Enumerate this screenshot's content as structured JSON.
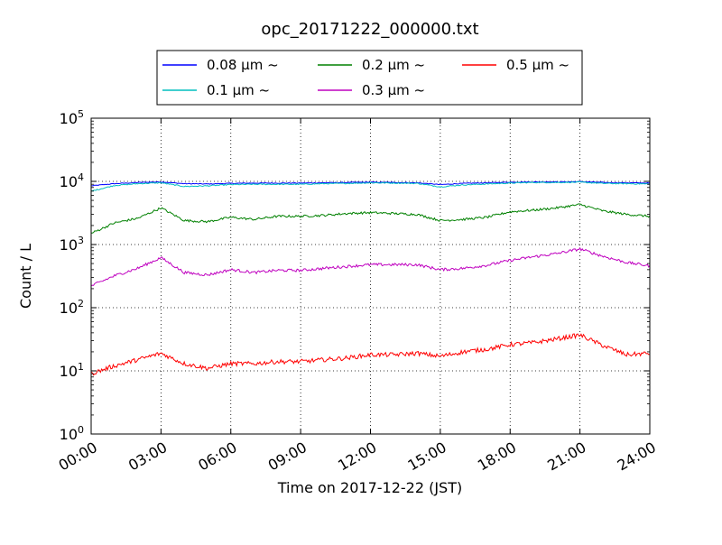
{
  "chart_data": {
    "type": "line",
    "title": "opc_20171222_000000.txt",
    "xlabel": "Time on 2017-12-22 (JST)",
    "ylabel": "Count / L",
    "yscale": "log",
    "ylim": [
      1,
      100000
    ],
    "xlim": [
      "00:00",
      "24:00"
    ],
    "grid": true,
    "legend_position": "top-center",
    "x_ticks": [
      "00:00",
      "03:00",
      "06:00",
      "09:00",
      "12:00",
      "15:00",
      "18:00",
      "21:00",
      "24:00"
    ],
    "y_ticks": [
      {
        "base": "10",
        "exp": "0",
        "value": 1
      },
      {
        "base": "10",
        "exp": "1",
        "value": 10
      },
      {
        "base": "10",
        "exp": "2",
        "value": 100
      },
      {
        "base": "10",
        "exp": "3",
        "value": 1000
      },
      {
        "base": "10",
        "exp": "4",
        "value": 10000
      },
      {
        "base": "10",
        "exp": "5",
        "value": 100000
      }
    ],
    "x": [
      "00:00",
      "01:00",
      "02:00",
      "03:00",
      "04:00",
      "05:00",
      "06:00",
      "07:00",
      "08:00",
      "09:00",
      "10:00",
      "11:00",
      "12:00",
      "13:00",
      "14:00",
      "15:00",
      "16:00",
      "17:00",
      "18:00",
      "19:00",
      "20:00",
      "21:00",
      "22:00",
      "23:00",
      "24:00"
    ],
    "series": [
      {
        "name": "0.08 μm ~",
        "color": "#0000ff",
        "values": [
          8500,
          9200,
          9600,
          9800,
          9200,
          9100,
          9300,
          9400,
          9400,
          9400,
          9500,
          9600,
          9700,
          9600,
          9500,
          8900,
          9300,
          9500,
          9700,
          9800,
          9800,
          9900,
          9600,
          9500,
          9400
        ]
      },
      {
        "name": "0.1 μm ~",
        "color": "#00bfbf",
        "values": [
          7000,
          8600,
          9200,
          9500,
          8300,
          8500,
          8900,
          9000,
          9000,
          9000,
          9200,
          9300,
          9500,
          9400,
          9300,
          8200,
          8800,
          9100,
          9400,
          9600,
          9600,
          9700,
          9300,
          9200,
          9100
        ]
      },
      {
        "name": "0.2 μm ~",
        "color": "#008000",
        "values": [
          1500,
          2200,
          2600,
          3800,
          2400,
          2300,
          2700,
          2500,
          2800,
          2800,
          2900,
          3100,
          3200,
          3100,
          3000,
          2400,
          2500,
          2700,
          3300,
          3500,
          3800,
          4300,
          3400,
          3000,
          2800
        ]
      },
      {
        "name": "0.3 μm ~",
        "color": "#bf00bf",
        "values": [
          220,
          320,
          420,
          620,
          360,
          330,
          400,
          360,
          390,
          390,
          420,
          450,
          480,
          480,
          480,
          400,
          420,
          470,
          560,
          640,
          720,
          850,
          650,
          520,
          460
        ]
      },
      {
        "name": "0.5 μm ~",
        "color": "#ff0000",
        "values": [
          9,
          12,
          15,
          19,
          13,
          11,
          13,
          13,
          14,
          14,
          15,
          16,
          18,
          18,
          19,
          17,
          20,
          22,
          26,
          28,
          32,
          37,
          25,
          18,
          19
        ]
      }
    ]
  }
}
